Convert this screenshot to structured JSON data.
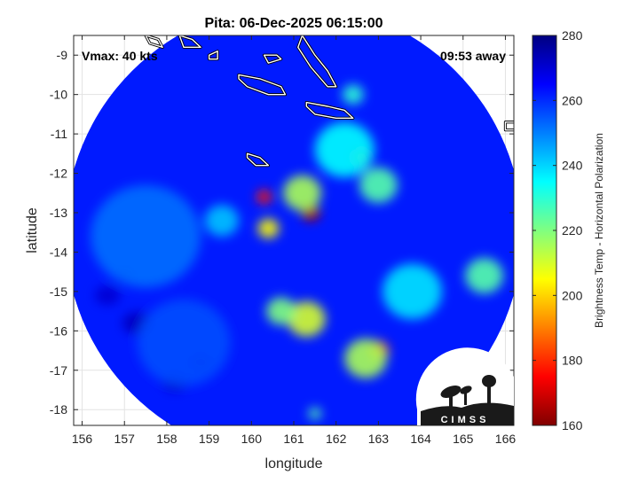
{
  "chart_data": {
    "type": "heatmap",
    "title": "Pita: 06-Dec-2025 06:15:00",
    "xlabel": "longitude",
    "ylabel": "latitude",
    "xlim": [
      155.8,
      166.2
    ],
    "ylim": [
      -18.4,
      -8.5
    ],
    "xticks": [
      156,
      157,
      158,
      159,
      160,
      161,
      162,
      163,
      164,
      165,
      166
    ],
    "yticks": [
      -9,
      -10,
      -11,
      -12,
      -13,
      -14,
      -15,
      -16,
      -17,
      -18
    ],
    "grid": true,
    "swath": {
      "center_lon": 161.0,
      "center_lat": -13.5,
      "radius_deg": 5.8
    },
    "annotations": {
      "vmax": "Vmax: 40 kts",
      "time_away": "09:53 away"
    },
    "colorbar": {
      "label": "Brightness Temp - Horizontal Polarization",
      "min": 160,
      "max": 280,
      "ticks": [
        160,
        180,
        200,
        220,
        240,
        260,
        280
      ],
      "colormap": "jet"
    },
    "background_value": 262,
    "features": [
      {
        "lon": 161.4,
        "lat": -13.0,
        "value": 165,
        "radius": 0.22
      },
      {
        "lon": 161.2,
        "lat": -12.5,
        "value": 215,
        "radius": 0.45
      },
      {
        "lon": 160.3,
        "lat": -12.6,
        "value": 178,
        "radius": 0.18
      },
      {
        "lon": 160.4,
        "lat": -13.4,
        "value": 205,
        "radius": 0.25
      },
      {
        "lon": 162.6,
        "lat": -11.6,
        "value": 185,
        "radius": 0.22
      },
      {
        "lon": 162.2,
        "lat": -11.4,
        "value": 235,
        "radius": 0.7
      },
      {
        "lon": 163.0,
        "lat": -12.3,
        "value": 225,
        "radius": 0.45
      },
      {
        "lon": 163.0,
        "lat": -16.5,
        "value": 180,
        "radius": 0.25
      },
      {
        "lon": 162.7,
        "lat": -16.7,
        "value": 215,
        "radius": 0.5
      },
      {
        "lon": 161.3,
        "lat": -15.7,
        "value": 210,
        "radius": 0.45
      },
      {
        "lon": 160.7,
        "lat": -15.5,
        "value": 220,
        "radius": 0.35
      },
      {
        "lon": 163.8,
        "lat": -15.0,
        "value": 238,
        "radius": 0.7
      },
      {
        "lon": 165.5,
        "lat": -14.6,
        "value": 225,
        "radius": 0.45
      },
      {
        "lon": 162.4,
        "lat": -10.0,
        "value": 230,
        "radius": 0.25
      },
      {
        "lon": 159.3,
        "lat": -13.2,
        "value": 242,
        "radius": 0.4
      },
      {
        "lon": 161.5,
        "lat": -18.1,
        "value": 225,
        "radius": 0.15
      },
      {
        "lon": 157.5,
        "lat": -13.6,
        "value": 252,
        "radius": 1.3
      },
      {
        "lon": 158.4,
        "lat": -16.3,
        "value": 256,
        "radius": 1.1
      }
    ],
    "cold_spots": [
      {
        "lon": 157.3,
        "lat": -15.8,
        "value": 272,
        "radius": 0.35
      },
      {
        "lon": 156.6,
        "lat": -15.1,
        "value": 270,
        "radius": 0.3
      },
      {
        "lon": 158.2,
        "lat": -17.3,
        "value": 271,
        "radius": 0.3
      },
      {
        "lon": 158.8,
        "lat": -16.8,
        "value": 270,
        "radius": 0.25
      },
      {
        "lon": 157.0,
        "lat": -14.6,
        "value": 269,
        "radius": 0.2
      }
    ],
    "coastlines": [
      {
        "label": "island-a",
        "points": [
          [
            161.2,
            -8.5
          ],
          [
            161.5,
            -9.0
          ],
          [
            161.8,
            -9.4
          ],
          [
            162.0,
            -9.8
          ],
          [
            161.8,
            -9.8
          ],
          [
            161.4,
            -9.3
          ],
          [
            161.1,
            -8.8
          ]
        ]
      },
      {
        "label": "island-b",
        "points": [
          [
            159.7,
            -9.5
          ],
          [
            160.2,
            -9.6
          ],
          [
            160.7,
            -9.8
          ],
          [
            160.8,
            -10.0
          ],
          [
            160.4,
            -10.0
          ],
          [
            159.9,
            -9.8
          ],
          [
            159.7,
            -9.6
          ]
        ]
      },
      {
        "label": "island-c",
        "points": [
          [
            161.3,
            -10.2
          ],
          [
            161.8,
            -10.3
          ],
          [
            162.2,
            -10.4
          ],
          [
            162.4,
            -10.6
          ],
          [
            162.0,
            -10.6
          ],
          [
            161.5,
            -10.5
          ],
          [
            161.3,
            -10.3
          ]
        ]
      },
      {
        "label": "island-d",
        "points": [
          [
            160.3,
            -9.0
          ],
          [
            160.6,
            -9.0
          ],
          [
            160.7,
            -9.1
          ],
          [
            160.4,
            -9.2
          ]
        ]
      },
      {
        "label": "island-e",
        "points": [
          [
            159.0,
            -9.0
          ],
          [
            159.2,
            -8.9
          ],
          [
            159.2,
            -9.1
          ],
          [
            159.0,
            -9.1
          ]
        ]
      },
      {
        "label": "island-f",
        "points": [
          [
            159.9,
            -11.5
          ],
          [
            160.2,
            -11.6
          ],
          [
            160.4,
            -11.8
          ],
          [
            160.1,
            -11.8
          ],
          [
            159.9,
            -11.6
          ]
        ]
      },
      {
        "label": "island-g",
        "points": [
          [
            166.0,
            -10.7
          ],
          [
            166.3,
            -10.7
          ],
          [
            166.3,
            -10.9
          ],
          [
            166.0,
            -10.9
          ]
        ]
      },
      {
        "label": "island-h",
        "points": [
          [
            157.5,
            -8.5
          ],
          [
            157.8,
            -8.6
          ],
          [
            157.9,
            -8.8
          ],
          [
            157.6,
            -8.7
          ]
        ]
      },
      {
        "label": "island-i",
        "points": [
          [
            158.3,
            -8.5
          ],
          [
            158.6,
            -8.6
          ],
          [
            158.8,
            -8.8
          ],
          [
            158.4,
            -8.8
          ]
        ]
      }
    ]
  },
  "logo": {
    "text": "CIMSS"
  }
}
